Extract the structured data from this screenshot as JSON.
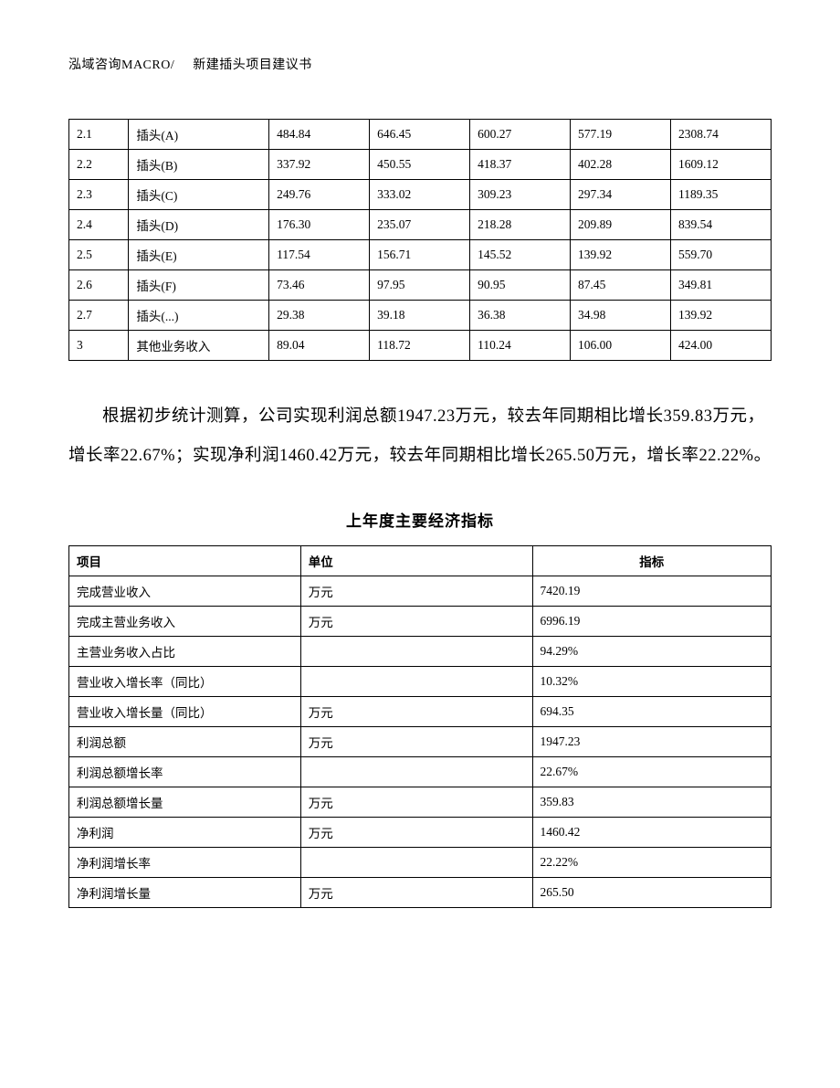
{
  "header": {
    "company": "泓域咨询MACRO/",
    "title": "新建插头项目建议书"
  },
  "table1": {
    "rows": [
      {
        "num": "2.1",
        "name": "插头(A)",
        "v1": "484.84",
        "v2": "646.45",
        "v3": "600.27",
        "v4": "577.19",
        "v5": "2308.74"
      },
      {
        "num": "2.2",
        "name": "插头(B)",
        "v1": "337.92",
        "v2": "450.55",
        "v3": "418.37",
        "v4": "402.28",
        "v5": "1609.12"
      },
      {
        "num": "2.3",
        "name": "插头(C)",
        "v1": "249.76",
        "v2": "333.02",
        "v3": "309.23",
        "v4": "297.34",
        "v5": "1189.35"
      },
      {
        "num": "2.4",
        "name": "插头(D)",
        "v1": "176.30",
        "v2": "235.07",
        "v3": "218.28",
        "v4": "209.89",
        "v5": "839.54"
      },
      {
        "num": "2.5",
        "name": "插头(E)",
        "v1": "117.54",
        "v2": "156.71",
        "v3": "145.52",
        "v4": "139.92",
        "v5": "559.70"
      },
      {
        "num": "2.6",
        "name": "插头(F)",
        "v1": "73.46",
        "v2": "97.95",
        "v3": "90.95",
        "v4": "87.45",
        "v5": "349.81"
      },
      {
        "num": "2.7",
        "name": "插头(...)",
        "v1": "29.38",
        "v2": "39.18",
        "v3": "36.38",
        "v4": "34.98",
        "v5": "139.92"
      },
      {
        "num": "3",
        "name": "其他业务收入",
        "v1": "89.04",
        "v2": "118.72",
        "v3": "110.24",
        "v4": "106.00",
        "v5": "424.00"
      }
    ]
  },
  "paragraph": "根据初步统计测算，公司实现利润总额1947.23万元，较去年同期相比增长359.83万元，增长率22.67%；实现净利润1460.42万元，较去年同期相比增长265.50万元，增长率22.22%。",
  "table2": {
    "title": "上年度主要经济指标",
    "headers": {
      "project": "项目",
      "unit": "单位",
      "value": "指标"
    },
    "rows": [
      {
        "project": "完成营业收入",
        "unit": "万元",
        "value": "7420.19"
      },
      {
        "project": "完成主营业务收入",
        "unit": "万元",
        "value": "6996.19"
      },
      {
        "project": "主营业务收入占比",
        "unit": "",
        "value": "94.29%"
      },
      {
        "project": "营业收入增长率（同比）",
        "unit": "",
        "value": "10.32%"
      },
      {
        "project": "营业收入增长量（同比）",
        "unit": "万元",
        "value": "694.35"
      },
      {
        "project": "利润总额",
        "unit": "万元",
        "value": "1947.23"
      },
      {
        "project": "利润总额增长率",
        "unit": "",
        "value": "22.67%"
      },
      {
        "project": "利润总额增长量",
        "unit": "万元",
        "value": "359.83"
      },
      {
        "project": "净利润",
        "unit": "万元",
        "value": "1460.42"
      },
      {
        "project": "净利润增长率",
        "unit": "",
        "value": "22.22%"
      },
      {
        "project": "净利润增长量",
        "unit": "万元",
        "value": "265.50"
      }
    ]
  }
}
